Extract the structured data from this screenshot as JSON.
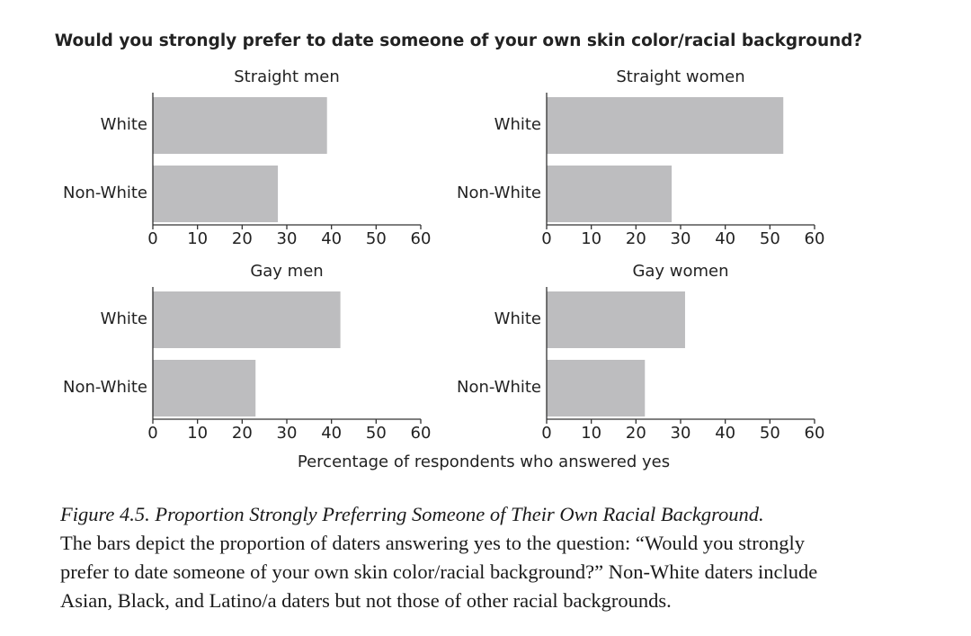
{
  "title": "Would you strongly prefer to date someone of your own skin color/racial background?",
  "xlabel": "Percentage of respondents who answered yes",
  "chart_data": [
    {
      "type": "bar",
      "orientation": "horizontal",
      "title": "Straight men",
      "categories": [
        "White",
        "Non-White"
      ],
      "values": [
        39,
        28
      ],
      "color": "#bdbdbf",
      "xlim": [
        0,
        60
      ],
      "xticks": [
        0,
        10,
        20,
        30,
        40,
        50,
        60
      ]
    },
    {
      "type": "bar",
      "orientation": "horizontal",
      "title": "Straight women",
      "categories": [
        "White",
        "Non-White"
      ],
      "values": [
        53,
        28
      ],
      "color": "#bdbdbf",
      "xlim": [
        0,
        60
      ],
      "xticks": [
        0,
        10,
        20,
        30,
        40,
        50,
        60
      ]
    },
    {
      "type": "bar",
      "orientation": "horizontal",
      "title": "Gay men",
      "categories": [
        "White",
        "Non-White"
      ],
      "values": [
        42,
        23
      ],
      "color": "#bdbdbf",
      "xlim": [
        0,
        60
      ],
      "xticks": [
        0,
        10,
        20,
        30,
        40,
        50,
        60
      ]
    },
    {
      "type": "bar",
      "orientation": "horizontal",
      "title": "Gay women",
      "categories": [
        "White",
        "Non-White"
      ],
      "values": [
        31,
        22
      ],
      "color": "#bdbdbf",
      "xlim": [
        0,
        60
      ],
      "xticks": [
        0,
        10,
        20,
        30,
        40,
        50,
        60
      ]
    }
  ],
  "caption": {
    "label": "Figure 4.5. Proportion Strongly Preferring Someone of Their Own Racial Background.",
    "text": "The bars depict the proportion of daters answering yes to the question: “Would you strongly prefer to date someone of your own skin color/racial background?” Non-White daters include Asian, Black, and Latino/a daters but not those of other racial backgrounds."
  }
}
